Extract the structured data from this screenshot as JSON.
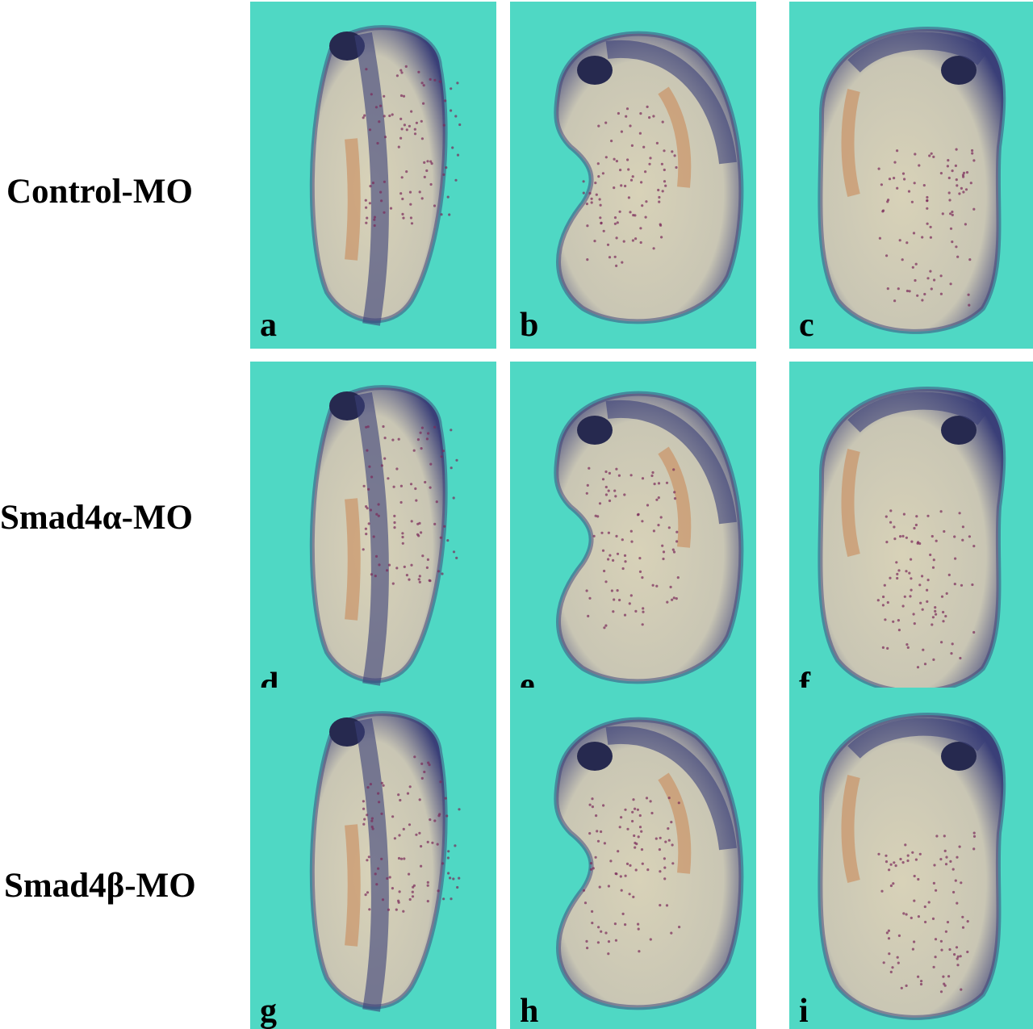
{
  "rows": [
    {
      "label": "Control-MO"
    },
    {
      "label": "Smad4α-MO"
    },
    {
      "label": "Smad4β-MO"
    }
  ],
  "panels": [
    {
      "letter": "a",
      "view": "dorsal"
    },
    {
      "letter": "b",
      "view": "lateral"
    },
    {
      "letter": "c",
      "view": "lateral-mirrored"
    },
    {
      "letter": "d",
      "view": "dorsal"
    },
    {
      "letter": "e",
      "view": "lateral"
    },
    {
      "letter": "f",
      "view": "lateral-mirrored"
    },
    {
      "letter": "g",
      "view": "dorsal"
    },
    {
      "letter": "h",
      "view": "lateral"
    },
    {
      "letter": "i",
      "view": "lateral-mirrored"
    }
  ],
  "colors": {
    "background": "#4fd8c4",
    "embryo_body": "#d8d2b8",
    "stain": "#3a3f78",
    "muscle": "#c98a5a",
    "cells": "#7a2a5a"
  }
}
